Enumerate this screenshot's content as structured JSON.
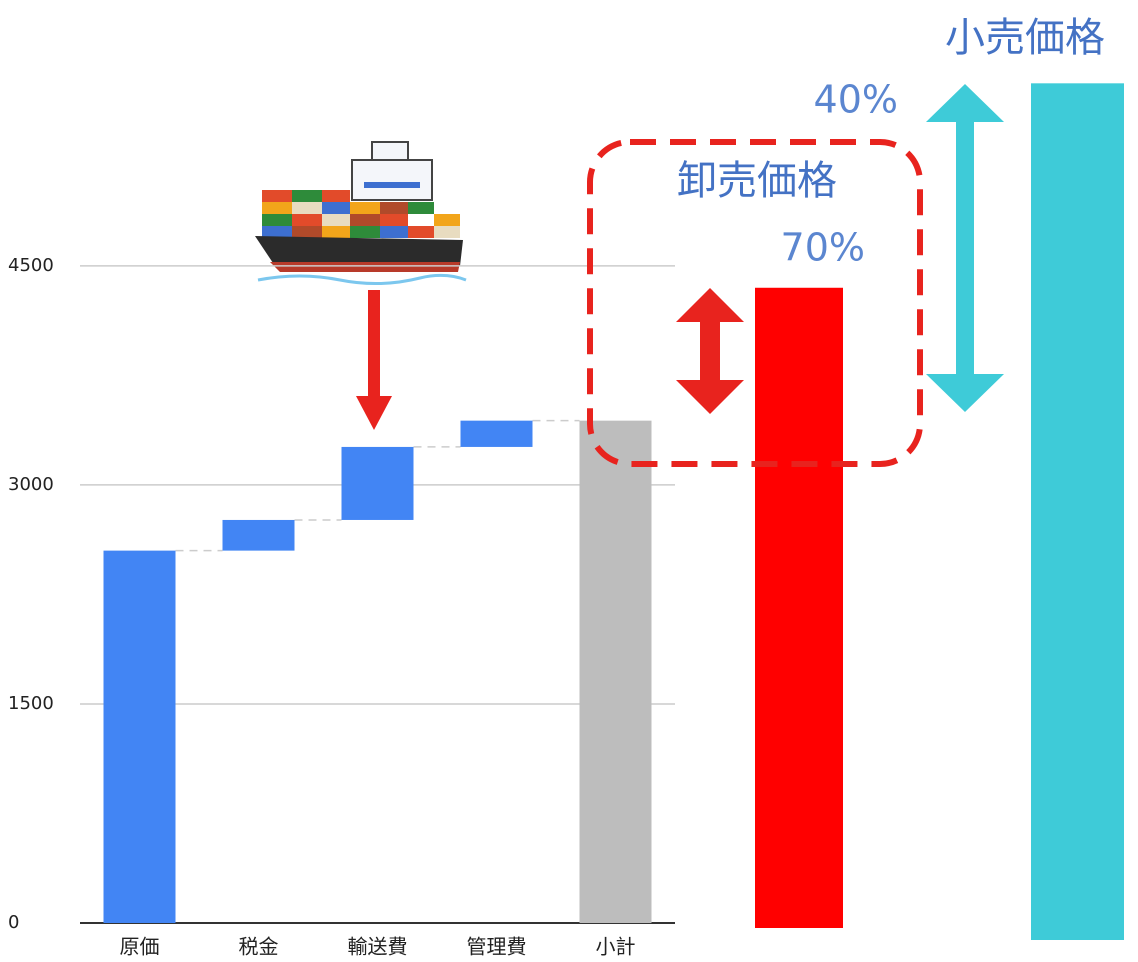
{
  "chart_data": {
    "type": "waterfall",
    "categories": [
      "原価",
      "税金",
      "輸送費",
      "管理費",
      "小計"
    ],
    "values": [
      2550,
      210,
      500,
      180,
      3440
    ],
    "totals": [
      false,
      false,
      false,
      false,
      true
    ],
    "colors": {
      "increase": "#4285f4",
      "total": "#bdbdbd"
    },
    "ylim": [
      0,
      6300
    ],
    "yticks": [
      0,
      1500,
      3000,
      4500
    ],
    "grid": true,
    "extra_bars": [
      {
        "name": "卸売価格",
        "value": 4350,
        "color": "#ff0000",
        "label": "70%"
      },
      {
        "name": "小売価格",
        "value": 5750,
        "color": "#3ecbd8",
        "label": "40%"
      }
    ]
  }
}
